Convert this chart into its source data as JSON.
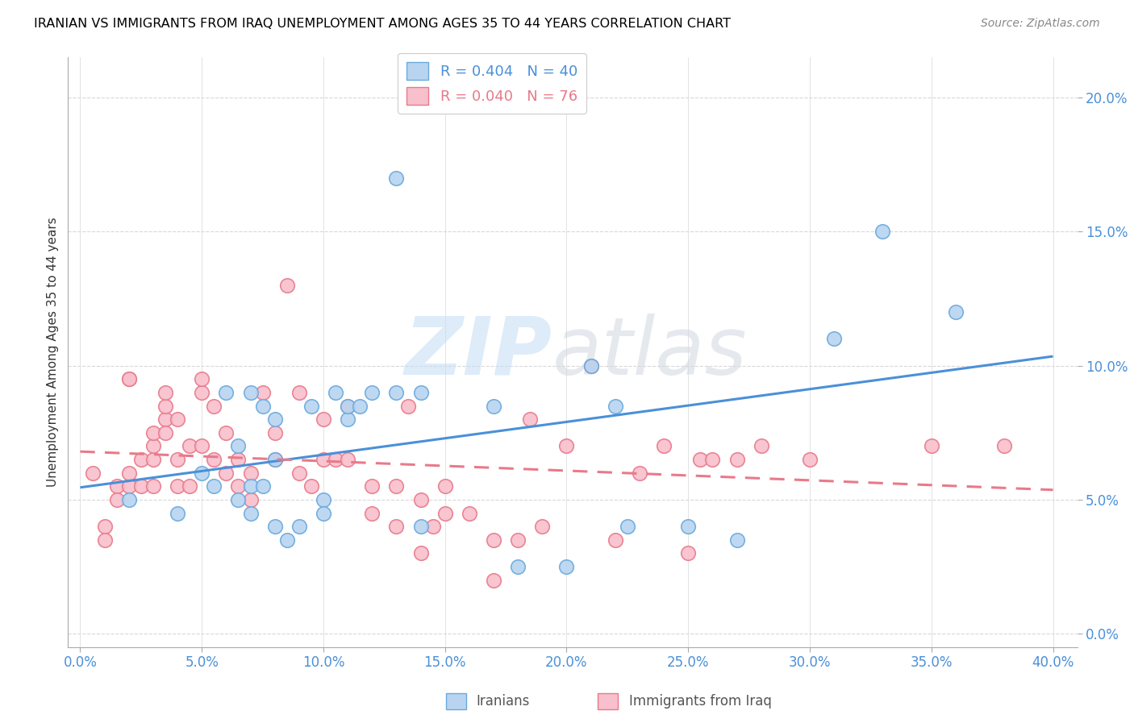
{
  "title": "IRANIAN VS IMMIGRANTS FROM IRAQ UNEMPLOYMENT AMONG AGES 35 TO 44 YEARS CORRELATION CHART",
  "source": "Source: ZipAtlas.com",
  "xlabel_tick_vals": [
    0.0,
    0.05,
    0.1,
    0.15,
    0.2,
    0.25,
    0.3,
    0.35,
    0.4
  ],
  "ylabel_tick_vals": [
    0.0,
    0.05,
    0.1,
    0.15,
    0.2
  ],
  "xlim": [
    -0.005,
    0.41
  ],
  "ylim": [
    -0.005,
    0.215
  ],
  "iranians_x": [
    0.02,
    0.04,
    0.05,
    0.055,
    0.06,
    0.065,
    0.065,
    0.07,
    0.07,
    0.07,
    0.075,
    0.075,
    0.08,
    0.08,
    0.08,
    0.085,
    0.09,
    0.095,
    0.1,
    0.1,
    0.105,
    0.11,
    0.11,
    0.115,
    0.12,
    0.13,
    0.13,
    0.14,
    0.14,
    0.17,
    0.18,
    0.2,
    0.21,
    0.22,
    0.225,
    0.25,
    0.27,
    0.31,
    0.33,
    0.36
  ],
  "iranians_y": [
    0.05,
    0.045,
    0.06,
    0.055,
    0.09,
    0.05,
    0.07,
    0.09,
    0.055,
    0.045,
    0.085,
    0.055,
    0.08,
    0.065,
    0.04,
    0.035,
    0.04,
    0.085,
    0.05,
    0.045,
    0.09,
    0.08,
    0.085,
    0.085,
    0.09,
    0.17,
    0.09,
    0.09,
    0.04,
    0.085,
    0.025,
    0.025,
    0.1,
    0.085,
    0.04,
    0.04,
    0.035,
    0.11,
    0.15,
    0.12
  ],
  "iraq_x": [
    0.005,
    0.01,
    0.01,
    0.015,
    0.015,
    0.02,
    0.02,
    0.02,
    0.02,
    0.025,
    0.025,
    0.03,
    0.03,
    0.03,
    0.03,
    0.035,
    0.035,
    0.035,
    0.035,
    0.04,
    0.04,
    0.04,
    0.045,
    0.045,
    0.05,
    0.05,
    0.05,
    0.055,
    0.055,
    0.06,
    0.06,
    0.065,
    0.065,
    0.07,
    0.07,
    0.075,
    0.08,
    0.08,
    0.085,
    0.09,
    0.09,
    0.095,
    0.1,
    0.1,
    0.105,
    0.11,
    0.11,
    0.12,
    0.12,
    0.13,
    0.13,
    0.135,
    0.14,
    0.14,
    0.145,
    0.15,
    0.15,
    0.16,
    0.17,
    0.17,
    0.18,
    0.185,
    0.19,
    0.2,
    0.21,
    0.22,
    0.23,
    0.24,
    0.25,
    0.255,
    0.26,
    0.27,
    0.28,
    0.3,
    0.35,
    0.38
  ],
  "iraq_y": [
    0.06,
    0.04,
    0.035,
    0.055,
    0.05,
    0.055,
    0.06,
    0.095,
    0.095,
    0.065,
    0.055,
    0.055,
    0.065,
    0.07,
    0.075,
    0.08,
    0.075,
    0.085,
    0.09,
    0.055,
    0.065,
    0.08,
    0.07,
    0.055,
    0.07,
    0.09,
    0.095,
    0.085,
    0.065,
    0.06,
    0.075,
    0.055,
    0.065,
    0.05,
    0.06,
    0.09,
    0.065,
    0.075,
    0.13,
    0.09,
    0.06,
    0.055,
    0.065,
    0.08,
    0.065,
    0.065,
    0.085,
    0.045,
    0.055,
    0.04,
    0.055,
    0.085,
    0.05,
    0.03,
    0.04,
    0.055,
    0.045,
    0.045,
    0.035,
    0.02,
    0.035,
    0.08,
    0.04,
    0.07,
    0.1,
    0.035,
    0.06,
    0.07,
    0.03,
    0.065,
    0.065,
    0.065,
    0.07,
    0.065,
    0.07,
    0.07
  ],
  "iranian_line_color": "#4a90d9",
  "iraq_line_color": "#e87a8a",
  "scatter_iran_facecolor": "#b8d4f0",
  "scatter_iran_edgecolor": "#6aaade",
  "scatter_iraq_facecolor": "#f8bfcc",
  "scatter_iraq_edgecolor": "#e87a8a",
  "watermark_color": "#c8dff5",
  "background_color": "#ffffff",
  "grid_color": "#d8d8d8",
  "title_fontsize": 11.5,
  "tick_fontsize": 12,
  "ylabel_fontsize": 11,
  "tick_color": "#4a90d9",
  "ylabel_color": "#333333"
}
